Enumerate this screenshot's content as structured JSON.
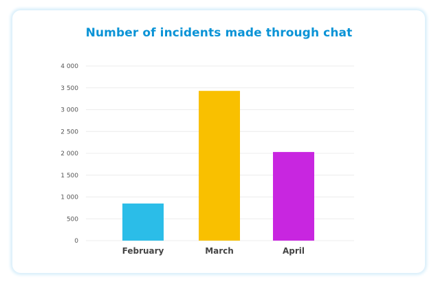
{
  "chart_data": {
    "type": "bar",
    "title": "Number of incidents made through chat",
    "categories": [
      "February",
      "March",
      "April"
    ],
    "values": [
      850,
      3430,
      2030
    ],
    "colors": [
      "#2bbde8",
      "#f9c000",
      "#c826e0"
    ],
    "xlabel": "",
    "ylabel": "",
    "ylim": [
      0,
      4000
    ],
    "yticks": [
      0,
      500,
      1000,
      1500,
      2000,
      2500,
      3000,
      3500,
      4000
    ],
    "ytick_labels": [
      "0",
      "500",
      "1 000",
      "1 500",
      "2 000",
      "2 500",
      "3 000",
      "3 500",
      "4 000"
    ],
    "grid": true,
    "legend": "none",
    "title_color": "#0a93d6"
  }
}
